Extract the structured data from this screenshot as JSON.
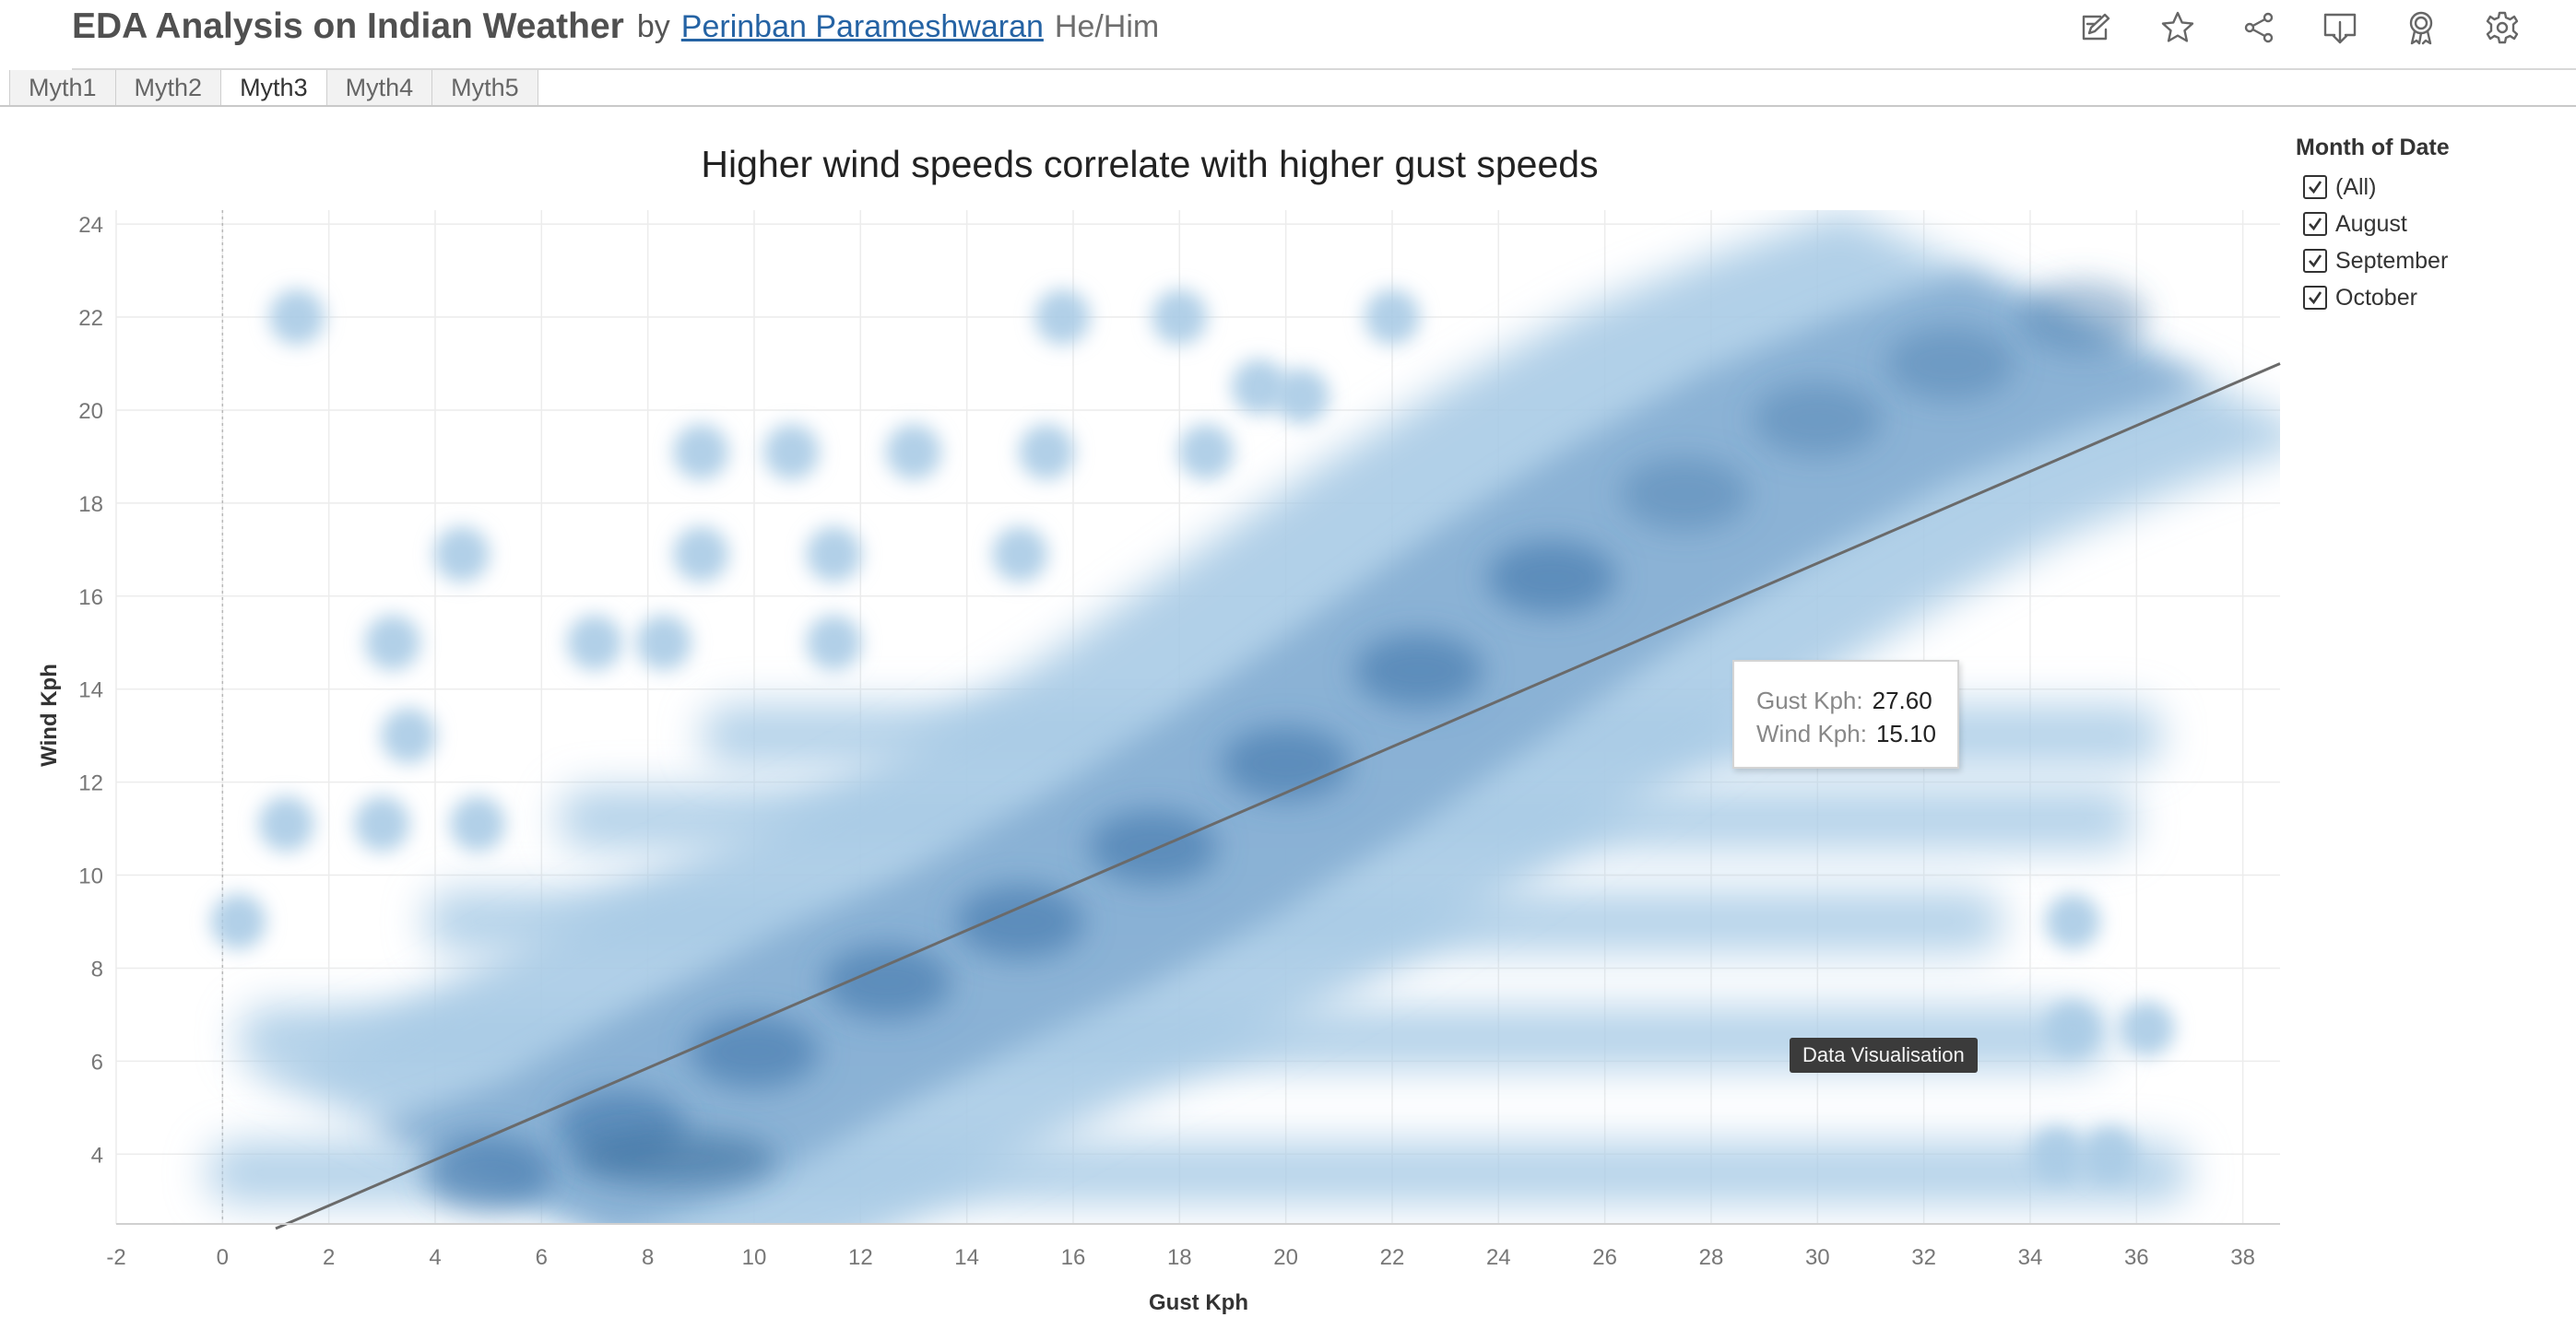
{
  "header": {
    "viz_title": "EDA Analysis on Indian Weather",
    "by": "by",
    "author": "Perinban Parameshwaran",
    "pronouns": "He/Him",
    "toolbar_icons": [
      "edit-icon",
      "star-icon",
      "share-icon",
      "download-icon",
      "badge-icon",
      "gear-icon"
    ]
  },
  "tabs": [
    {
      "label": "Myth1",
      "active": false
    },
    {
      "label": "Myth2",
      "active": false
    },
    {
      "label": "Myth3",
      "active": true
    },
    {
      "label": "Myth4",
      "active": false
    },
    {
      "label": "Myth5",
      "active": false
    }
  ],
  "filter": {
    "title": "Month of Date",
    "options": [
      {
        "label": "(All)",
        "checked": true
      },
      {
        "label": "August",
        "checked": true
      },
      {
        "label": "September",
        "checked": true
      },
      {
        "label": "October",
        "checked": true
      }
    ]
  },
  "tooltip": {
    "gust_label": "Gust Kph:",
    "gust_value": "27.60",
    "wind_label": "Wind Kph:",
    "wind_value": "15.10"
  },
  "overlay_label": "Data Visualisation",
  "chart_data": {
    "type": "scatter",
    "title": "Higher wind speeds correlate with higher gust speeds",
    "xlabel": "Gust Kph",
    "ylabel": "Wind Kph",
    "xlim": [
      -2,
      38.7
    ],
    "ylim": [
      2.5,
      24.3
    ],
    "xticks": [
      -2,
      0,
      2,
      4,
      6,
      8,
      10,
      12,
      14,
      16,
      18,
      20,
      22,
      24,
      26,
      28,
      30,
      32,
      34,
      36,
      38
    ],
    "yticks": [
      4,
      6,
      8,
      10,
      12,
      14,
      16,
      18,
      20,
      22,
      24
    ],
    "grid": true,
    "colors": {
      "point": "#4a7eb0",
      "point_light": "#a9cbe6",
      "trend": "#6a6a6a"
    },
    "trend_line": [
      [
        1,
        2.4
      ],
      [
        38.7,
        21.0
      ]
    ],
    "bands": [
      {
        "y": 3.6,
        "x_from": -0.3,
        "x_to": 37.0
      },
      {
        "y": 6.5,
        "x_from": 0.3,
        "x_to": 35.5
      },
      {
        "y": 9.0,
        "x_from": 3.8,
        "x_to": 33.5
      },
      {
        "y": 11.2,
        "x_from": 6.3,
        "x_to": 36.0
      },
      {
        "y": 13.0,
        "x_from": 9.0,
        "x_to": 36.5
      }
    ],
    "clusters": [
      {
        "x": 1.4,
        "y": 22.0
      },
      {
        "x": 9.0,
        "y": 19.1
      },
      {
        "x": 10.7,
        "y": 19.1
      },
      {
        "x": 13.0,
        "y": 19.1
      },
      {
        "x": 4.5,
        "y": 16.9
      },
      {
        "x": 9.0,
        "y": 16.9
      },
      {
        "x": 11.5,
        "y": 16.9
      },
      {
        "x": 3.2,
        "y": 15.0
      },
      {
        "x": 7.0,
        "y": 15.0
      },
      {
        "x": 8.3,
        "y": 15.0
      },
      {
        "x": 11.5,
        "y": 15.0
      },
      {
        "x": 3.5,
        "y": 13.0
      },
      {
        "x": 1.2,
        "y": 11.1
      },
      {
        "x": 3.0,
        "y": 11.1
      },
      {
        "x": 4.8,
        "y": 11.1
      },
      {
        "x": 0.3,
        "y": 9.0
      },
      {
        "x": 15.8,
        "y": 22.0
      },
      {
        "x": 18.0,
        "y": 22.0
      },
      {
        "x": 22.0,
        "y": 22.0
      },
      {
        "x": 19.5,
        "y": 20.5
      },
      {
        "x": 20.3,
        "y": 20.3
      },
      {
        "x": 15.5,
        "y": 19.1
      },
      {
        "x": 18.5,
        "y": 19.1
      },
      {
        "x": 15.0,
        "y": 16.9
      },
      {
        "x": 34.8,
        "y": 9.0
      },
      {
        "x": 34.8,
        "y": 6.7
      },
      {
        "x": 36.2,
        "y": 6.7
      },
      {
        "x": 34.5,
        "y": 4.0
      },
      {
        "x": 35.5,
        "y": 4.0
      }
    ],
    "density_core": [
      {
        "x": 5.0,
        "y": 3.6
      },
      {
        "x": 7.5,
        "y": 4.6
      },
      {
        "x": 10.0,
        "y": 6.2
      },
      {
        "x": 12.5,
        "y": 7.7
      },
      {
        "x": 15.0,
        "y": 9.0
      },
      {
        "x": 17.5,
        "y": 10.6
      },
      {
        "x": 20.0,
        "y": 12.4
      },
      {
        "x": 22.5,
        "y": 14.4
      },
      {
        "x": 25.0,
        "y": 16.4
      },
      {
        "x": 27.5,
        "y": 18.2
      },
      {
        "x": 30.0,
        "y": 19.8
      },
      {
        "x": 32.5,
        "y": 21.0
      },
      {
        "x": 35.0,
        "y": 22.0
      }
    ]
  }
}
